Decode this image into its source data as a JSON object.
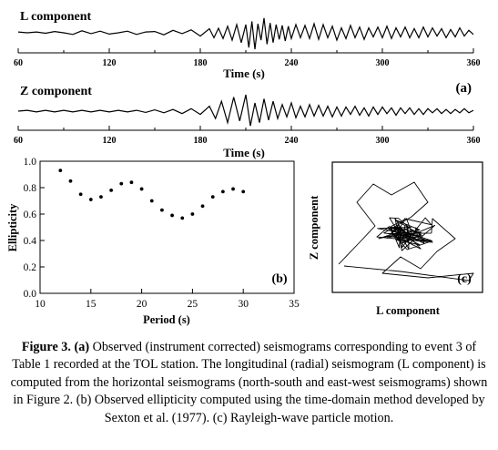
{
  "caption": {
    "figure_label": "Figure 3.",
    "part_a": "(a)",
    "text": " Observed (instrument corrected) seismograms corresponding to event 3 of Table 1 recorded at the TOL station. The longitudinal (radial) seismogram (L component) is computed from the horizontal seismograms (north-south and east-west seismograms) shown in Figure 2. (b) Observed ellipticity computed using the time-domain method developed by Sexton et al. (1977). (c) Rayleigh-wave particle motion."
  },
  "chart_data": [
    {
      "type": "line",
      "panel": "a-top",
      "title": "L component",
      "xlabel": "Time (s)",
      "xlim": [
        60,
        360
      ],
      "x_ticks": [
        "60",
        "120",
        "180",
        "240",
        "300",
        "360"
      ],
      "trace_t": [
        60,
        66,
        72,
        78,
        84,
        90,
        96,
        102,
        108,
        114,
        120,
        126,
        132,
        138,
        144,
        150,
        156,
        162,
        168,
        174,
        180,
        186,
        189,
        192,
        195,
        198,
        201,
        204,
        207,
        210,
        212,
        214,
        216,
        218,
        220,
        222,
        224,
        226,
        228,
        230,
        232,
        234,
        236,
        238,
        240,
        243,
        246,
        249,
        252,
        255,
        258,
        261,
        264,
        267,
        270,
        273,
        276,
        279,
        282,
        285,
        288,
        291,
        294,
        297,
        300,
        303,
        306,
        309,
        312,
        315,
        318,
        321,
        324,
        327,
        330,
        333,
        336,
        339,
        342,
        345,
        348,
        351,
        354,
        357,
        360
      ],
      "trace_v": [
        0.05,
        0.0,
        0.05,
        -0.03,
        0.08,
        0.0,
        -0.1,
        0.12,
        -0.05,
        0.1,
        -0.08,
        0.0,
        0.1,
        -0.1,
        0.05,
        0.08,
        -0.12,
        0.15,
        -0.05,
        0.18,
        -0.2,
        0.25,
        -0.3,
        0.28,
        -0.35,
        0.4,
        -0.45,
        0.5,
        -0.6,
        0.5,
        -0.9,
        0.7,
        -1.0,
        0.55,
        -0.45,
        0.9,
        -0.7,
        0.6,
        -0.6,
        0.5,
        -0.4,
        0.45,
        -0.5,
        0.4,
        -0.35,
        0.5,
        -0.3,
        0.45,
        -0.35,
        0.55,
        -0.4,
        0.5,
        -0.3,
        0.4,
        -0.45,
        0.3,
        -0.35,
        0.45,
        -0.3,
        0.35,
        -0.4,
        0.3,
        -0.25,
        0.35,
        -0.3,
        0.4,
        -0.35,
        0.3,
        -0.25,
        0.35,
        -0.3,
        0.25,
        -0.3,
        0.35,
        -0.25,
        0.3,
        -0.2,
        0.25,
        -0.3,
        0.2,
        -0.25,
        0.3,
        -0.2,
        0.15,
        -0.1
      ],
      "annotation": ""
    },
    {
      "type": "line",
      "panel": "a-bottom",
      "title": "Z component",
      "xlabel": "Time (s)",
      "xlim": [
        60,
        360
      ],
      "x_ticks": [
        "60",
        "120",
        "180",
        "240",
        "300",
        "360"
      ],
      "trace_t": [
        60,
        66,
        72,
        78,
        84,
        90,
        96,
        102,
        108,
        114,
        120,
        126,
        132,
        138,
        144,
        150,
        156,
        162,
        168,
        174,
        180,
        186,
        190,
        194,
        198,
        202,
        206,
        210,
        213,
        216,
        219,
        222,
        225,
        228,
        231,
        234,
        237,
        240,
        243,
        246,
        249,
        252,
        255,
        258,
        261,
        264,
        267,
        270,
        273,
        276,
        279,
        282,
        285,
        288,
        291,
        294,
        297,
        300,
        303,
        306,
        309,
        312,
        315,
        318,
        321,
        324,
        327,
        330,
        333,
        336,
        339,
        342,
        345,
        348,
        351,
        354,
        357,
        360
      ],
      "trace_v": [
        0.0,
        0.05,
        -0.05,
        0.05,
        -0.05,
        0.05,
        -0.05,
        0.05,
        -0.05,
        0.05,
        -0.05,
        0.05,
        -0.05,
        0.05,
        -0.08,
        0.08,
        -0.1,
        0.1,
        -0.15,
        0.15,
        -0.2,
        0.3,
        -0.45,
        0.6,
        -0.7,
        0.85,
        -0.6,
        1.0,
        -0.9,
        0.5,
        -0.7,
        0.75,
        -0.55,
        0.6,
        -0.45,
        0.4,
        -0.35,
        0.5,
        -0.4,
        0.3,
        -0.35,
        0.4,
        -0.3,
        0.35,
        -0.3,
        0.3,
        -0.35,
        0.25,
        -0.3,
        0.25,
        -0.2,
        0.3,
        -0.25,
        0.2,
        -0.3,
        0.25,
        -0.2,
        0.25,
        -0.15,
        0.2,
        -0.25,
        0.2,
        -0.15,
        0.2,
        -0.2,
        0.15,
        -0.2,
        0.15,
        -0.1,
        0.15,
        -0.15,
        0.1,
        -0.15,
        0.1,
        -0.1,
        0.15,
        -0.1,
        0.05
      ],
      "annotation": "(a)"
    },
    {
      "type": "scatter",
      "panel": "b",
      "xlabel": "Period (s)",
      "ylabel": "Ellipticity",
      "xlim": [
        10,
        35
      ],
      "ylim": [
        0.0,
        1.0
      ],
      "x_ticks": [
        "10",
        "15",
        "20",
        "25",
        "30",
        "35"
      ],
      "y_ticks": [
        "0.0",
        "0.2",
        "0.4",
        "0.6",
        "0.8",
        "1.0"
      ],
      "x": [
        12,
        13,
        14,
        15,
        16,
        17,
        18,
        19,
        20,
        21,
        22,
        23,
        24,
        25,
        26,
        27,
        28,
        29,
        30
      ],
      "y": [
        0.93,
        0.85,
        0.75,
        0.71,
        0.73,
        0.78,
        0.83,
        0.84,
        0.79,
        0.7,
        0.63,
        0.59,
        0.57,
        0.6,
        0.66,
        0.73,
        0.77,
        0.79,
        0.77
      ],
      "grid": false,
      "annotation": "(b)"
    },
    {
      "type": "line",
      "panel": "c",
      "xlabel": "L component",
      "ylabel": "Z component",
      "axes_ticks": false,
      "annotation": "(c)"
    }
  ]
}
